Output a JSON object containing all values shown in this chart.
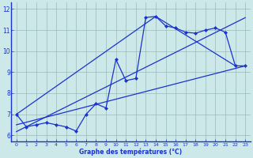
{
  "xlabel": "Graphe des températures (°C)",
  "hours": [
    0,
    1,
    2,
    3,
    4,
    5,
    6,
    7,
    8,
    9,
    10,
    11,
    12,
    13,
    14,
    15,
    16,
    17,
    18,
    19,
    20,
    21,
    22,
    23
  ],
  "temps": [
    7.0,
    6.4,
    6.5,
    6.6,
    6.5,
    6.4,
    6.2,
    7.0,
    7.5,
    7.3,
    9.6,
    8.6,
    8.7,
    11.6,
    11.65,
    11.2,
    11.1,
    10.9,
    10.85,
    11.0,
    11.1,
    10.9,
    9.3,
    9.3
  ],
  "line_color": "#1a33cc",
  "bg_color": "#cce8e8",
  "grid_color": "#99bbbb",
  "axis_label_color": "#1a33cc",
  "ylim": [
    5.7,
    12.3
  ],
  "xlim": [
    -0.5,
    23.5
  ],
  "yticks": [
    6,
    7,
    8,
    9,
    10,
    11,
    12
  ],
  "xticks": [
    0,
    1,
    2,
    3,
    4,
    5,
    6,
    7,
    8,
    9,
    10,
    11,
    12,
    13,
    14,
    15,
    16,
    17,
    18,
    19,
    20,
    21,
    22,
    23
  ],
  "line1_x": [
    0,
    23
  ],
  "line1_y": [
    7.0,
    9.3
  ],
  "line2_x": [
    0,
    23
  ],
  "line2_y": [
    7.0,
    9.3
  ],
  "upper_line_x": [
    0,
    14,
    22
  ],
  "upper_line_y": [
    7.0,
    11.65,
    9.3
  ],
  "lower_line_x": [
    0,
    23
  ],
  "lower_line_y": [
    6.5,
    9.3
  ]
}
